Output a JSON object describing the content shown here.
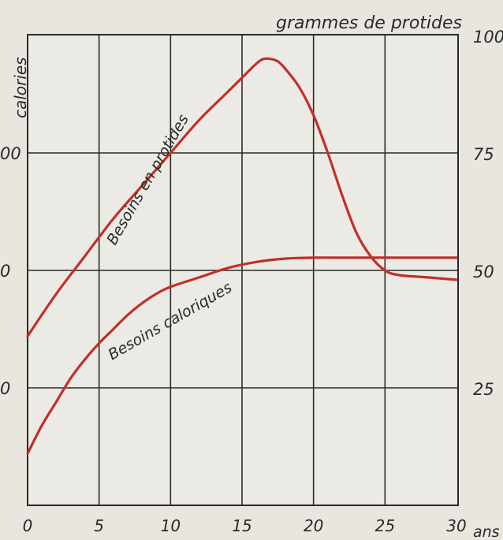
{
  "chart_data": {
    "type": "line",
    "title": "",
    "xlabel": "ans",
    "ylabel_left": "calories",
    "ylabel_right": "grammes de protides",
    "x_ticks": [
      0,
      5,
      10,
      15,
      20,
      25,
      30
    ],
    "y_left_ticks": [
      "0",
      "0",
      "00"
    ],
    "y_right_ticks": [
      25,
      50,
      75,
      100
    ],
    "xlim": [
      0,
      30
    ],
    "ylim_right": [
      0,
      100
    ],
    "grid": true,
    "line_color": "#c0302b",
    "series": [
      {
        "name": "Besoins en protides",
        "x": [
          0,
          2,
          4,
          6,
          8,
          10,
          12,
          14,
          15,
          16,
          16.5,
          17,
          17.5,
          18,
          19,
          20,
          21,
          22,
          23,
          24,
          25,
          26,
          28,
          30
        ],
        "y": [
          36,
          45,
          53,
          61,
          68,
          75,
          82,
          88,
          91,
          94,
          95,
          95,
          94.5,
          93,
          89,
          83,
          75,
          66,
          58,
          53,
          50,
          49,
          48.5,
          48
        ]
      },
      {
        "name": "Besoins caloriques",
        "x": [
          0,
          1,
          2,
          3,
          4,
          5,
          6,
          7,
          8,
          9,
          10,
          12,
          14,
          16,
          18,
          20,
          22,
          24,
          26,
          28,
          30
        ],
        "y": [
          11,
          17,
          22,
          27,
          31,
          34.5,
          37.5,
          40.5,
          43,
          45,
          46.5,
          48.5,
          50.5,
          51.8,
          52.5,
          52.7,
          52.7,
          52.7,
          52.7,
          52.7,
          52.7
        ]
      }
    ]
  }
}
